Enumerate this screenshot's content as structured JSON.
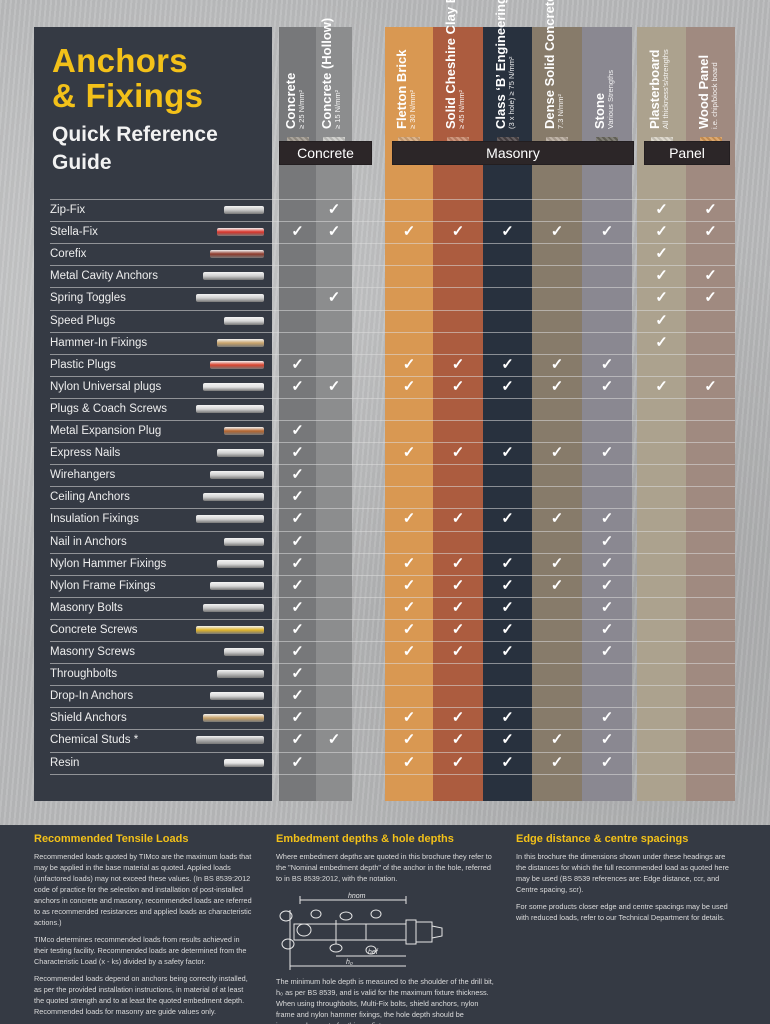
{
  "title": {
    "line1": "Anchors",
    "line2": "& Fixings",
    "sub1": "Quick Reference",
    "sub2": "Guide"
  },
  "colors": {
    "accent": "#f3c119",
    "panel_dark": "#353a44"
  },
  "groups": [
    {
      "label": "Concrete"
    },
    {
      "label": "Masonry"
    },
    {
      "label": "Panel"
    }
  ],
  "columns": [
    {
      "name": "Concrete",
      "sub": "≥ 25 N/mm²",
      "color": "#77787a",
      "swatch": "#9d968c"
    },
    {
      "name": "Concrete (Hollow)",
      "sub": "≥ 15 N/mm²",
      "color": "#8c8d8e",
      "swatch": "#c9c9c6"
    },
    {
      "name": "Fletton Brick",
      "sub": "≥ 30 N/mm²",
      "color": "#d99852",
      "swatch": "#d6a87a"
    },
    {
      "name": "Solid Cheshire Clay Brick",
      "sub": "≥ 45 N/mm²",
      "color": "#ac5c3f",
      "swatch": "#c8876a"
    },
    {
      "name": "Class ‘B’ Engineering Brick",
      "sub": "(3 x hole) ≥ 75 N/mm²",
      "color": "#28313e",
      "swatch": "#4a4345"
    },
    {
      "name": "Dense Solid Concrete Block",
      "sub": "7.3 N/mm²",
      "color": "#877b6a",
      "swatch": "#b5a89a"
    },
    {
      "name": "Stone",
      "sub": "Various Strengths",
      "color": "#8a8891",
      "swatch": "#6c6a60"
    },
    {
      "name": "Plasterboard",
      "sub": "All thickness's/strengths",
      "color": "#aca28e",
      "swatch": "#d8d2c5"
    },
    {
      "name": "Wood Panel",
      "sub": "i.e. chip/block board",
      "color": "#a08a80",
      "swatch": "#d79a58"
    }
  ],
  "rows": [
    {
      "label": "Zip-Fix",
      "checks": [
        0,
        1,
        0,
        0,
        0,
        0,
        0,
        1,
        1
      ],
      "icon": "zip-fix-icon",
      "icon_color": "#c9c9c9"
    },
    {
      "label": "Stella-Fix",
      "checks": [
        1,
        1,
        1,
        1,
        1,
        1,
        1,
        1,
        1
      ],
      "icon": "stella-fix-icon",
      "icon_color": "#d9342a"
    },
    {
      "label": "Corefix",
      "checks": [
        0,
        0,
        0,
        0,
        0,
        0,
        0,
        1,
        0
      ],
      "icon": "corefix-icon",
      "icon_color": "#8e3a2c"
    },
    {
      "label": "Metal Cavity Anchors",
      "checks": [
        0,
        0,
        0,
        0,
        0,
        0,
        0,
        1,
        1
      ],
      "icon": "metal-cavity-anchor-icon",
      "icon_color": "#cfcfcf"
    },
    {
      "label": "Spring Toggles",
      "checks": [
        0,
        1,
        0,
        0,
        0,
        0,
        0,
        1,
        1
      ],
      "icon": "spring-toggle-icon",
      "icon_color": "#cfcfcf"
    },
    {
      "label": "Speed Plugs",
      "checks": [
        0,
        0,
        0,
        0,
        0,
        0,
        0,
        1,
        0
      ],
      "icon": "speed-plug-icon",
      "icon_color": "#d8d8d8"
    },
    {
      "label": "Hammer-In Fixings",
      "checks": [
        0,
        0,
        0,
        0,
        0,
        0,
        0,
        1,
        0
      ],
      "icon": "hammer-in-fixing-icon",
      "icon_color": "#c9a36a"
    },
    {
      "label": "Plastic Plugs",
      "checks": [
        1,
        0,
        1,
        1,
        1,
        1,
        1,
        0,
        0
      ],
      "icon": "plastic-plug-icon",
      "icon_color": "#d9432e"
    },
    {
      "label": "Nylon Universal plugs",
      "checks": [
        1,
        1,
        1,
        1,
        1,
        1,
        1,
        1,
        1
      ],
      "icon": "nylon-universal-plug-icon",
      "icon_color": "#e2e2e2"
    },
    {
      "label": "Plugs & Coach Screws",
      "checks": [
        0,
        0,
        0,
        0,
        0,
        0,
        0,
        0,
        0
      ],
      "icon": "coach-screw-icon",
      "icon_color": "#d6d6d6"
    },
    {
      "label": "Metal Expansion Plug",
      "checks": [
        1,
        0,
        0,
        0,
        0,
        0,
        0,
        0,
        0
      ],
      "icon": "metal-expansion-plug-icon",
      "icon_color": "#b5652f"
    },
    {
      "label": "Express Nails",
      "checks": [
        1,
        0,
        1,
        1,
        1,
        1,
        1,
        0,
        0
      ],
      "icon": "express-nail-icon",
      "icon_color": "#d0d0d0"
    },
    {
      "label": "Wirehangers",
      "checks": [
        1,
        0,
        0,
        0,
        0,
        0,
        0,
        0,
        0
      ],
      "icon": "wirehanger-icon",
      "icon_color": "#cfcfcf"
    },
    {
      "label": "Ceiling Anchors",
      "checks": [
        1,
        0,
        0,
        0,
        0,
        0,
        0,
        0,
        0
      ],
      "icon": "ceiling-anchor-icon",
      "icon_color": "#d2d2d2"
    },
    {
      "label": "Insulation Fixings",
      "checks": [
        1,
        0,
        1,
        1,
        1,
        1,
        1,
        0,
        0
      ],
      "icon": "insulation-fixing-icon",
      "icon_color": "#d5d5d5"
    },
    {
      "label": "Nail in Anchors",
      "checks": [
        1,
        0,
        0,
        0,
        0,
        0,
        1,
        0,
        0
      ],
      "icon": "nail-in-anchor-icon",
      "icon_color": "#d2d2d2"
    },
    {
      "label": "Nylon Hammer Fixings",
      "checks": [
        1,
        0,
        1,
        1,
        1,
        1,
        1,
        0,
        0
      ],
      "icon": "nylon-hammer-fixing-icon",
      "icon_color": "#d8d8d8"
    },
    {
      "label": "Nylon Frame Fixings",
      "checks": [
        1,
        0,
        1,
        1,
        1,
        1,
        1,
        0,
        0
      ],
      "icon": "nylon-frame-fixing-icon",
      "icon_color": "#d8d8d8"
    },
    {
      "label": "Masonry Bolts",
      "checks": [
        1,
        0,
        1,
        1,
        1,
        0,
        1,
        0,
        0
      ],
      "icon": "masonry-bolt-icon",
      "icon_color": "#c7c7c7"
    },
    {
      "label": "Concrete Screws",
      "checks": [
        1,
        0,
        1,
        1,
        1,
        0,
        1,
        0,
        0
      ],
      "icon": "concrete-screw-icon",
      "icon_color": "#e0b42a"
    },
    {
      "label": "Masonry Screws",
      "checks": [
        1,
        0,
        1,
        1,
        1,
        0,
        1,
        0,
        0
      ],
      "icon": "masonry-screw-icon",
      "icon_color": "#cfcfcf"
    },
    {
      "label": "Throughbolts",
      "checks": [
        1,
        0,
        0,
        0,
        0,
        0,
        0,
        0,
        0
      ],
      "icon": "throughbolt-icon",
      "icon_color": "#bcbcbc"
    },
    {
      "label": "Drop-In Anchors",
      "checks": [
        1,
        0,
        0,
        0,
        0,
        0,
        0,
        0,
        0
      ],
      "icon": "drop-in-anchor-icon",
      "icon_color": "#d8d8d8"
    },
    {
      "label": "Shield Anchors",
      "checks": [
        1,
        0,
        1,
        1,
        1,
        0,
        1,
        0,
        0
      ],
      "icon": "shield-anchor-icon",
      "icon_color": "#c9a36a"
    },
    {
      "label": "Chemical Studs *",
      "checks": [
        1,
        1,
        1,
        1,
        1,
        1,
        1,
        0,
        0
      ],
      "icon": "chemical-stud-icon",
      "icon_color": "#b0b0b0"
    },
    {
      "label": "Resin",
      "checks": [
        1,
        0,
        1,
        1,
        1,
        1,
        1,
        0,
        0
      ],
      "icon": "resin-cartridge-icon",
      "icon_color": "#e5e5e5"
    }
  ],
  "check_glyph": "✓",
  "sections": [
    {
      "title": "Recommended Tensile Loads",
      "paragraphs": [
        "Recommended loads quoted by TIMco are the maximum loads that may be applied in the base material as quoted. Applied loads (unfactored loads) may not exceed these values. (In BS 8539:2012 code of practice for the selection and installation of post-installed anchors in concrete and masonry, recommended loads are referred to as recommended resistances and applied loads as characteristic actions.)",
        "TIMco determines recommended loads from results achieved in their testing facility. Recommended loads are determined from the Characteristic Load (x - ks) divided by a safety factor.",
        "Recommended loads depend on anchors being correctly installed, as per the provided installation instructions, in material of at least the quoted strength and to at least the quoted embedment depth. Recommended loads for masonry are guide values only."
      ]
    },
    {
      "title": "Embedment depths & hole depths",
      "paragraphs": [
        "Where embedment depths are quoted in this brochure they refer to the \"Nominal embedment depth\" of the anchor in the hole, referred to in BS 8539:2012, with the notation.",
        "The minimum hole depth is measured to the shoulder of the drill bit, h₀ as per BS 8539, and is valid for the maximum fixture thickness. When using throughbolts, Multi-Fix bolts, shield anchors, nylon frame and nylon hammer fixings, the hole depth should be increased pro rata for thinner fixtures."
      ],
      "diagram_labels": {
        "h_nom": "hnom",
        "h_ef": "hef",
        "h_0": "h₀"
      }
    },
    {
      "title": "Edge distance & centre spacings",
      "paragraphs": [
        "In this brochure the dimensions shown under these headings are the distances for which the full recommended load as quoted here may be used (BS 8539 references are: Edge distance, ccr, and Centre spacing, scr).",
        "For some products closer edge and centre spacings may be used with reduced loads, refer to our Technical Department for details."
      ]
    }
  ]
}
